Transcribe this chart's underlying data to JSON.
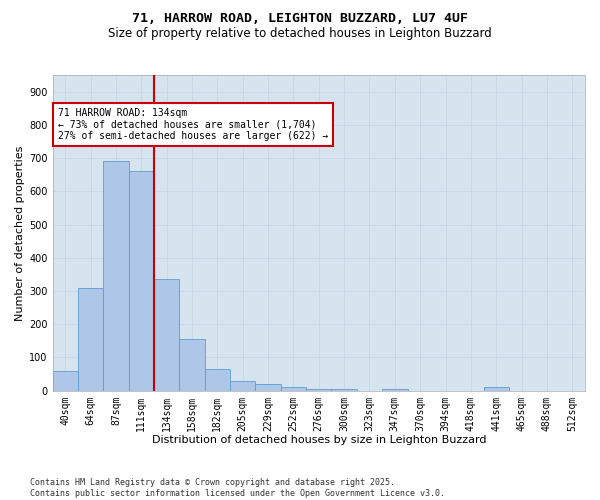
{
  "title1": "71, HARROW ROAD, LEIGHTON BUZZARD, LU7 4UF",
  "title2": "Size of property relative to detached houses in Leighton Buzzard",
  "xlabel": "Distribution of detached houses by size in Leighton Buzzard",
  "ylabel": "Number of detached properties",
  "categories": [
    "40sqm",
    "64sqm",
    "87sqm",
    "111sqm",
    "134sqm",
    "158sqm",
    "182sqm",
    "205sqm",
    "229sqm",
    "252sqm",
    "276sqm",
    "300sqm",
    "323sqm",
    "347sqm",
    "370sqm",
    "394sqm",
    "418sqm",
    "441sqm",
    "465sqm",
    "488sqm",
    "512sqm"
  ],
  "values": [
    60,
    310,
    690,
    660,
    335,
    155,
    65,
    30,
    20,
    10,
    5,
    5,
    0,
    5,
    0,
    0,
    0,
    10,
    0,
    0,
    0
  ],
  "bar_color": "#aec6e8",
  "bar_edge_color": "#5a9fd4",
  "vline_color": "#cc0000",
  "annotation_text": "71 HARROW ROAD: 134sqm\n← 73% of detached houses are smaller (1,704)\n27% of semi-detached houses are larger (622) →",
  "annotation_box_color": "#cc0000",
  "annotation_bg": "#ffffff",
  "ylim": [
    0,
    950
  ],
  "yticks": [
    0,
    100,
    200,
    300,
    400,
    500,
    600,
    700,
    800,
    900
  ],
  "grid_color": "#c8d8e8",
  "bg_color": "#d6e4f0",
  "footer": "Contains HM Land Registry data © Crown copyright and database right 2025.\nContains public sector information licensed under the Open Government Licence v3.0.",
  "title1_fontsize": 9.5,
  "title2_fontsize": 8.5,
  "xlabel_fontsize": 8,
  "ylabel_fontsize": 8,
  "tick_fontsize": 7,
  "footer_fontsize": 6,
  "annot_fontsize": 7
}
